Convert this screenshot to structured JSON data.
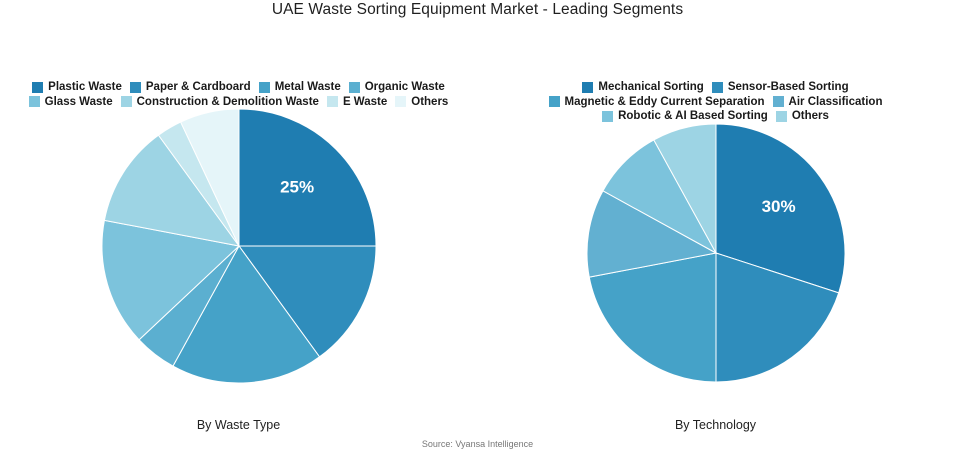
{
  "title": "UAE Waste Sorting Equipment Market - Leading Segments",
  "source": "Source: Vyansa Intelligence",
  "chart_data": [
    {
      "type": "pie",
      "caption": "By Waste Type",
      "categories": [
        "Plastic Waste",
        "Paper & Cardboard",
        "Metal Waste",
        "Organic Waste",
        "Glass Waste",
        "Construction & Demolition Waste",
        "E Waste",
        "Others"
      ],
      "values": [
        25,
        15,
        18,
        5,
        15,
        12,
        3,
        7
      ],
      "colors": [
        "#1f7db1",
        "#2f8dbc",
        "#45a2c8",
        "#5bafd0",
        "#7cc3dc",
        "#9dd4e4",
        "#c5e7ef",
        "#e5f5f9"
      ],
      "data_labels": [
        "25%",
        "",
        "",
        "",
        "",
        "",
        "",
        ""
      ],
      "legend_position": "top"
    },
    {
      "type": "pie",
      "caption": "By Technology",
      "categories": [
        "Mechanical Sorting",
        "Sensor-Based Sorting",
        "Magnetic & Eddy Current Separation",
        "Air Classification",
        "Robotic & AI Based Sorting",
        "Others"
      ],
      "values": [
        30,
        20,
        22,
        11,
        9,
        8
      ],
      "colors": [
        "#1f7db1",
        "#2f8dbc",
        "#45a2c8",
        "#62b0d1",
        "#7cc3dc",
        "#9dd4e4"
      ],
      "data_labels": [
        "30%",
        "",
        "",
        "",
        "",
        ""
      ],
      "legend_position": "top"
    }
  ]
}
